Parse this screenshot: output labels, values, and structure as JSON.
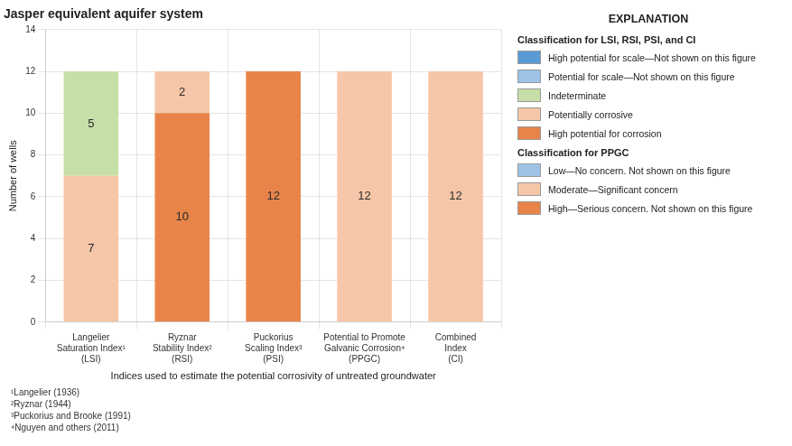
{
  "chart_data": {
    "type": "bar",
    "stacked": true,
    "title": "Jasper equivalent aquifer system",
    "xlabel": "Indices used to estimate the potential corrosivity of untreated groundwater",
    "ylabel": "Number of wells",
    "categories": [
      "Langelier\nSaturation Index¹\n(LSI)",
      "Ryznar\nStability Index²\n(RSI)",
      "Puckorius\nScaling Index³\n(PSI)",
      "Potential to Promote\nGalvanic Corrosion⁴\n(PPGC)",
      "Combined\nIndex\n(CI)"
    ],
    "series": [
      {
        "values": [
          7,
          10,
          12,
          12,
          12
        ],
        "colors": [
          "#F5C6A8",
          "#E8844A",
          "#E8844A",
          "#F5C6A8",
          "#F5C6A8"
        ]
      },
      {
        "values": [
          5,
          2,
          null,
          null,
          null
        ],
        "colors": [
          "#C6DFA8",
          "#F5C6A8",
          null,
          null,
          null
        ]
      }
    ],
    "ylim": [
      0,
      14
    ],
    "yticks": [
      0,
      2,
      4,
      6,
      8,
      10,
      12,
      14
    ],
    "grid": true,
    "data_labels": true,
    "explanation": {
      "title": "EXPLANATION",
      "sections": [
        {
          "heading": "Classification for LSI, RSI, PSI, and CI",
          "items": [
            {
              "color": "#5B9BD5",
              "label": "High potential for scale—Not shown on this figure"
            },
            {
              "color": "#9DC3E6",
              "label": "Potential for scale—Not shown on this figure"
            },
            {
              "color": "#C6DFA8",
              "label": "Indeterminate"
            },
            {
              "color": "#F5C6A8",
              "label": "Potentially corrosive"
            },
            {
              "color": "#E8844A",
              "label": "High potential for corrosion"
            }
          ]
        },
        {
          "heading": "Classification for PPGC",
          "items": [
            {
              "color": "#9DC3E6",
              "label": "Low—No concern. Not shown on this figure"
            },
            {
              "color": "#F5C6A8",
              "label": "Moderate—Significant concern"
            },
            {
              "color": "#E8844A",
              "label": "High—Serious concern. Not shown on this figure"
            }
          ]
        }
      ]
    },
    "footnotes": [
      "¹Langelier (1936)",
      "²Ryznar (1944)",
      "³Puckorius and Brooke (1991)",
      "⁴Nguyen and others (2011)"
    ]
  }
}
